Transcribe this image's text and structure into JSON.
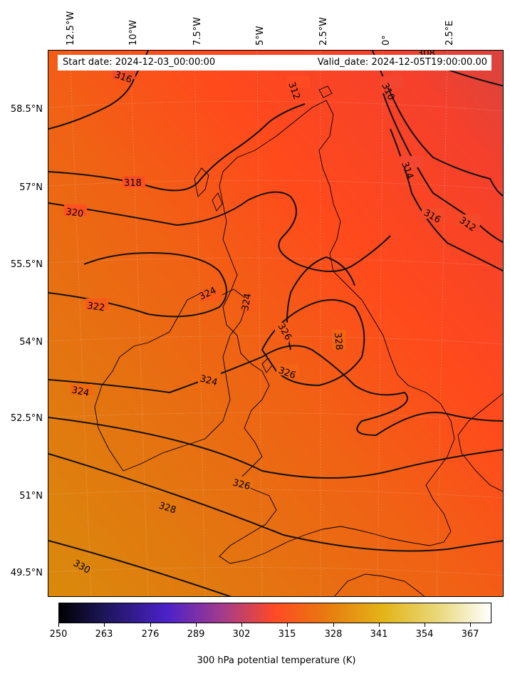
{
  "header": {
    "start_date": "Start date: 2024-12-03_00:00:00",
    "valid_date": "Valid_date: 2024-12-05T19:00:00.00"
  },
  "map": {
    "longitude_labels": [
      "12.5°W",
      "10°W",
      "7.5°W",
      "5°W",
      "2.5°W",
      "0°",
      "2.5°E"
    ],
    "latitude_labels": [
      "58.5°N",
      "57°N",
      "55.5°N",
      "54°N",
      "52.5°N",
      "51°N",
      "49.5°N"
    ],
    "contour_labels": [
      "316",
      "308",
      "310",
      "312",
      "314",
      "316",
      "312",
      "318",
      "320",
      "322",
      "324",
      "324",
      "326",
      "326",
      "328",
      "324",
      "324",
      "326",
      "328",
      "330"
    ],
    "colors": {
      "low": "#d74a3e",
      "mid": "#ff4a1c",
      "high": "#e07010",
      "warm": "#d98a0b",
      "contour": "#111111",
      "coast": "#000000"
    }
  },
  "colorbar": {
    "ticks": [
      "250",
      "263",
      "276",
      "289",
      "302",
      "315",
      "328",
      "341",
      "354",
      "367"
    ],
    "title": "300 hPa potential temperature (K)",
    "range": [
      250,
      373
    ]
  }
}
